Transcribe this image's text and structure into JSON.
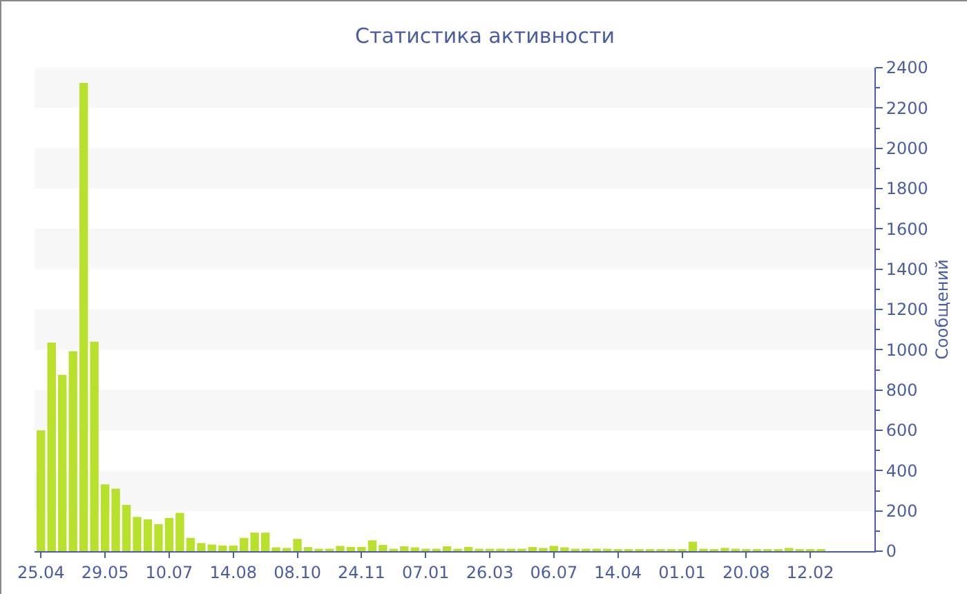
{
  "chart_data": {
    "type": "bar",
    "title": "Статистика активности",
    "ylabel": "Сообщений",
    "categories": [
      "25.04",
      null,
      null,
      null,
      null,
      null,
      "29.05",
      null,
      null,
      null,
      null,
      null,
      "10.07",
      null,
      null,
      null,
      null,
      null,
      "14.08",
      null,
      null,
      null,
      null,
      null,
      "08.10",
      null,
      null,
      null,
      null,
      null,
      "24.11",
      null,
      null,
      null,
      null,
      null,
      "07.01",
      null,
      null,
      null,
      null,
      null,
      "26.03",
      null,
      null,
      null,
      null,
      null,
      "06.07",
      null,
      null,
      null,
      null,
      null,
      "14.04",
      null,
      null,
      null,
      null,
      null,
      "01.01",
      null,
      null,
      null,
      null,
      null,
      "20.08",
      null,
      null,
      null,
      null,
      null,
      "12.02",
      null
    ],
    "values": [
      600,
      1035,
      875,
      993,
      2325,
      1040,
      332,
      310,
      230,
      170,
      158,
      134,
      165,
      190,
      66,
      40,
      33,
      28,
      28,
      66,
      92,
      92,
      19,
      16,
      61,
      20,
      12,
      12,
      26,
      21,
      21,
      54,
      31,
      12,
      24,
      19,
      12,
      12,
      24,
      12,
      21,
      12,
      12,
      12,
      12,
      12,
      21,
      16,
      26,
      19,
      12,
      12,
      12,
      12,
      10,
      10,
      10,
      10,
      10,
      10,
      10,
      47,
      12,
      10,
      16,
      12,
      10,
      10,
      10,
      10,
      16,
      10,
      10,
      10
    ],
    "color": "#b8e02c",
    "ylim": [
      0,
      2400
    ],
    "yticks": [
      0,
      200,
      400,
      600,
      800,
      1000,
      1200,
      1400,
      1600,
      1800,
      2000,
      2200,
      2400
    ],
    "bands": [
      {
        "axis": "y",
        "from": 200,
        "to": 400,
        "color": "#f7f7f7"
      },
      {
        "axis": "y",
        "from": 600,
        "to": 800,
        "color": "#f7f7f7"
      },
      {
        "axis": "y",
        "from": 1000,
        "to": 1200,
        "color": "#f7f7f7"
      },
      {
        "axis": "y",
        "from": 1400,
        "to": 1600,
        "color": "#f7f7f7"
      },
      {
        "axis": "y",
        "from": 1800,
        "to": 2000,
        "color": "#f7f7f7"
      },
      {
        "axis": "y",
        "from": 2200,
        "to": 2400,
        "color": "#f7f7f7"
      }
    ]
  }
}
